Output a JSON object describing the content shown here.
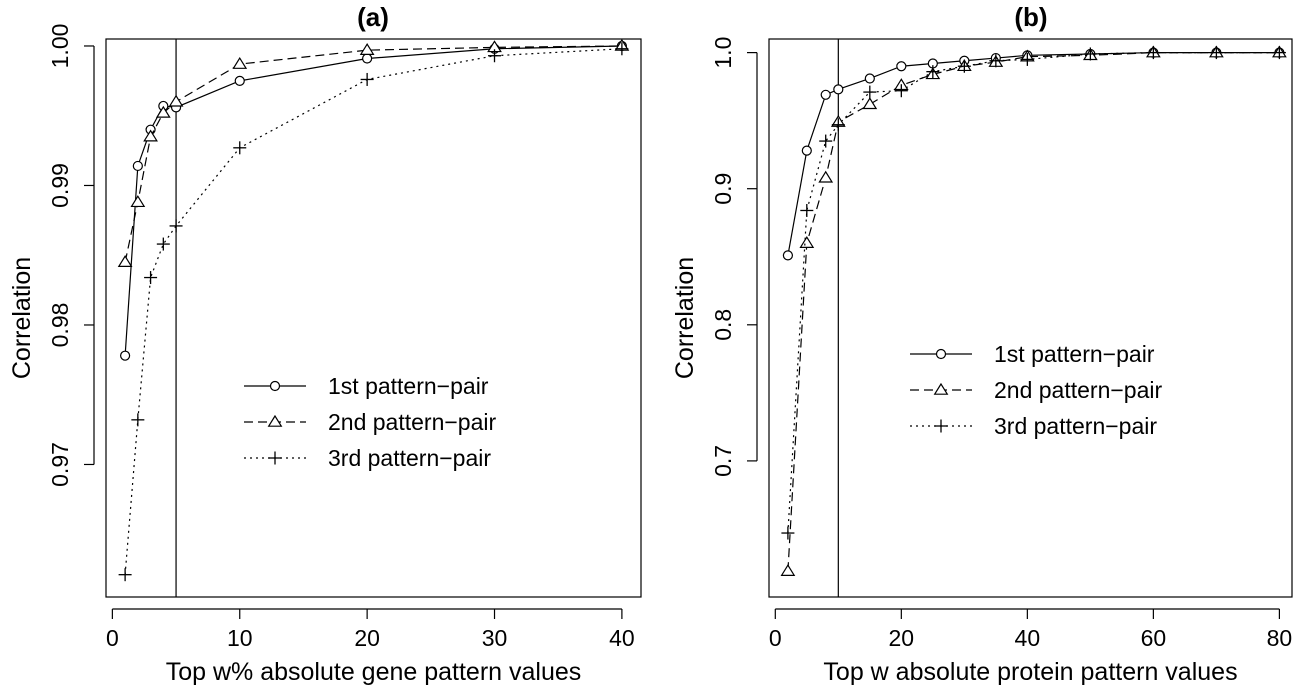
{
  "chart_data": [
    {
      "type": "line",
      "title": "(a)",
      "xlabel": "Top w% absolute gene pattern values",
      "ylabel": "Correlation",
      "xlim": [
        -0.5,
        41.5
      ],
      "ylim": [
        0.9605,
        1.0005
      ],
      "xticks": [
        0,
        10,
        20,
        30,
        40
      ],
      "xtick_labels": [
        "0",
        "10",
        "20",
        "30",
        "40"
      ],
      "yticks": [
        0.97,
        0.98,
        0.99,
        1.0
      ],
      "ytick_labels": [
        "0.97",
        "0.98",
        "0.99",
        "1.00"
      ],
      "vline": 5,
      "grid": false,
      "legend_position": "center-right",
      "series": [
        {
          "name": "1st pattern−pair",
          "marker": "circle",
          "linestyle": "solid",
          "x": [
            1,
            2,
            3,
            4,
            5,
            10,
            20,
            30,
            40
          ],
          "y": [
            0.9778,
            0.9914,
            0.994,
            0.9957,
            0.9956,
            0.9975,
            0.9991,
            0.9998,
            1.0
          ]
        },
        {
          "name": "2nd pattern−pair",
          "marker": "triangle",
          "linestyle": "dashed",
          "x": [
            1,
            2,
            3,
            4,
            5,
            10,
            20,
            30,
            40
          ],
          "y": [
            0.9845,
            0.9888,
            0.9935,
            0.9952,
            0.996,
            0.9987,
            0.9997,
            0.9999,
            1.0
          ]
        },
        {
          "name": "3rd pattern−pair",
          "marker": "plus",
          "linestyle": "dotted",
          "x": [
            1,
            2,
            3,
            4,
            5,
            10,
            20,
            30,
            40
          ],
          "y": [
            0.9621,
            0.9732,
            0.9834,
            0.9858,
            0.9871,
            0.9927,
            0.9976,
            0.9993,
            0.9998
          ]
        }
      ]
    },
    {
      "type": "line",
      "title": "(b)",
      "xlabel": "Top w absolute protein pattern values",
      "ylabel": "Correlation",
      "xlim": [
        -1,
        82
      ],
      "ylim": [
        0.6,
        1.01
      ],
      "xticks": [
        0,
        20,
        40,
        60,
        80
      ],
      "xtick_labels": [
        "0",
        "20",
        "40",
        "60",
        "80"
      ],
      "yticks": [
        0.7,
        0.8,
        0.9,
        1.0
      ],
      "ytick_labels": [
        "0.7",
        "0.8",
        "0.9",
        "1.0"
      ],
      "vline": 10,
      "grid": false,
      "legend_position": "center-right",
      "series": [
        {
          "name": "1st pattern−pair",
          "marker": "circle",
          "linestyle": "solid",
          "x": [
            2,
            5,
            8,
            10,
            15,
            20,
            25,
            30,
            35,
            40,
            50,
            60,
            70,
            80
          ],
          "y": [
            0.851,
            0.928,
            0.969,
            0.973,
            0.981,
            0.99,
            0.992,
            0.994,
            0.996,
            0.998,
            0.999,
            1.0,
            1.0,
            1.0
          ]
        },
        {
          "name": "2nd pattern−pair",
          "marker": "triangle",
          "linestyle": "dashed",
          "x": [
            2,
            5,
            8,
            10,
            15,
            20,
            25,
            30,
            35,
            40,
            50,
            60,
            70,
            80
          ],
          "y": [
            0.619,
            0.86,
            0.908,
            0.949,
            0.962,
            0.976,
            0.984,
            0.99,
            0.993,
            0.997,
            0.998,
            1.0,
            1.0,
            1.0
          ]
        },
        {
          "name": "3rd pattern−pair",
          "marker": "plus",
          "linestyle": "dotted",
          "x": [
            2,
            5,
            8,
            10,
            15,
            20,
            25,
            30,
            35,
            40,
            50,
            60,
            70,
            80
          ],
          "y": [
            0.647,
            0.884,
            0.935,
            0.947,
            0.971,
            0.972,
            0.986,
            0.99,
            0.994,
            0.995,
            0.999,
            1.0,
            1.0,
            1.0
          ]
        }
      ]
    }
  ]
}
